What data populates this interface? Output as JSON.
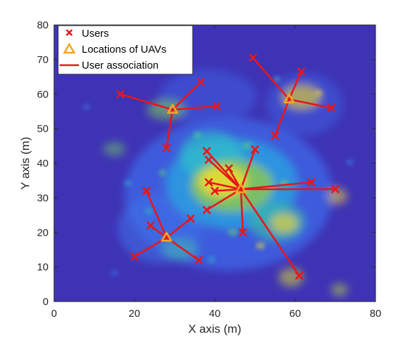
{
  "chart_data": {
    "type": "scatter",
    "title": "",
    "xlabel": "X axis (m)",
    "ylabel": "Y axis (m)",
    "xlim": [
      0,
      80
    ],
    "ylim": [
      0,
      80
    ],
    "xticks": [
      0,
      20,
      40,
      60,
      80
    ],
    "yticks": [
      0,
      10,
      20,
      30,
      40,
      50,
      60,
      70,
      80
    ],
    "grid": false,
    "legend_position": "top-left",
    "background": "heatmap",
    "colors": {
      "users": "#e8161b",
      "uavs": "#f5a623",
      "association": "#e8161b",
      "heat_low": "#3e33b5",
      "heat_high": "#f9e423"
    },
    "series": [
      {
        "name": "Users",
        "marker": "x",
        "points": [
          [
            16.5,
            60
          ],
          [
            36.5,
            63.5
          ],
          [
            40.5,
            56.5
          ],
          [
            28,
            44.5
          ],
          [
            49.5,
            70.5
          ],
          [
            61.5,
            66.5
          ],
          [
            69,
            56
          ],
          [
            55,
            48
          ],
          [
            38,
            43.5
          ],
          [
            38.5,
            41
          ],
          [
            43.5,
            38.5
          ],
          [
            50,
            44
          ],
          [
            38.5,
            34.5
          ],
          [
            40,
            32
          ],
          [
            64,
            34.5
          ],
          [
            70,
            32.5
          ],
          [
            38,
            26.5
          ],
          [
            47,
            20
          ],
          [
            61,
            7.5
          ],
          [
            23,
            32
          ],
          [
            24,
            22
          ],
          [
            34,
            24
          ],
          [
            20,
            13
          ],
          [
            36,
            12
          ]
        ]
      },
      {
        "name": "Locations of UAVs",
        "marker": "triangle",
        "points": [
          [
            29.5,
            55.5
          ],
          [
            58.5,
            58.5
          ],
          [
            46.5,
            32.5
          ],
          [
            28,
            18.5
          ]
        ]
      },
      {
        "name": "User association",
        "marker": "line",
        "links": [
          [
            0,
            0
          ],
          [
            0,
            1
          ],
          [
            0,
            2
          ],
          [
            0,
            3
          ],
          [
            1,
            4
          ],
          [
            1,
            5
          ],
          [
            1,
            6
          ],
          [
            1,
            7
          ],
          [
            2,
            8
          ],
          [
            2,
            9
          ],
          [
            2,
            10
          ],
          [
            2,
            11
          ],
          [
            2,
            12
          ],
          [
            2,
            13
          ],
          [
            2,
            14
          ],
          [
            2,
            15
          ],
          [
            2,
            16
          ],
          [
            2,
            17
          ],
          [
            2,
            18
          ],
          [
            3,
            19
          ],
          [
            3,
            20
          ],
          [
            3,
            21
          ],
          [
            3,
            22
          ],
          [
            3,
            23
          ]
        ]
      }
    ]
  }
}
